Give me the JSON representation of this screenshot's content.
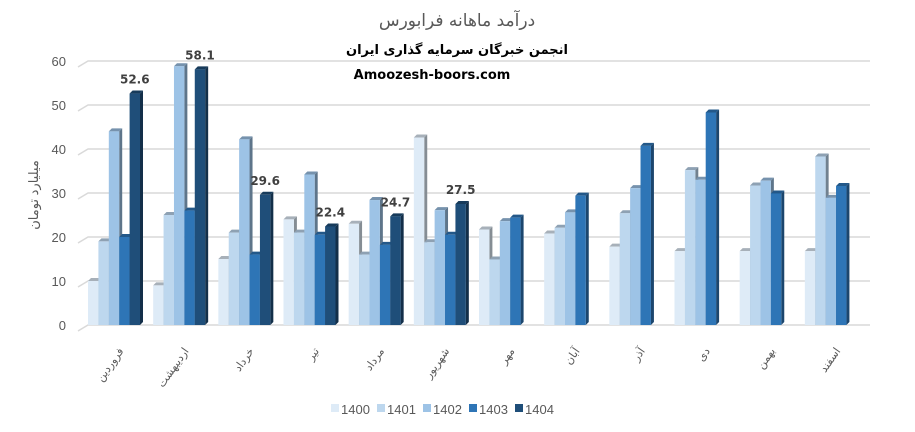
{
  "chart_data": {
    "type": "bar",
    "title": "درآمد ماهانه فرابورس",
    "subtitle": "انجمن خبرگان سرمایه گذاری ایران",
    "watermark_text": "Amoozesh-boors.com",
    "ylabel": "میلیارد تومان",
    "xlabel": "",
    "ylim": [
      0,
      60
    ],
    "yticks": [
      0,
      10,
      20,
      30,
      40,
      50,
      60
    ],
    "grid": true,
    "legend_position": "bottom",
    "style": "3d-clustered-column",
    "categories": [
      "فروردین",
      "اردیبهشت",
      "خرداد",
      "تیر",
      "مرداد",
      "شهریور",
      "مهر",
      "آبان",
      "آذر",
      "دی",
      "بهمن",
      "اسفند"
    ],
    "series": [
      {
        "name": "1400",
        "color": "#deebf7",
        "values": [
          10,
          9,
          15,
          24,
          23,
          42.6,
          21.7,
          20.8,
          17.8,
          16.8,
          16.8,
          16.8
        ]
      },
      {
        "name": "1401",
        "color": "#bdd7ee",
        "values": [
          19,
          25,
          21,
          21,
          16,
          18.8,
          14.9,
          22.1,
          25.4,
          35.2,
          31.7,
          38.3
        ]
      },
      {
        "name": "1402",
        "color": "#9dc3e6",
        "values": [
          44,
          58.8,
          42.2,
          34.2,
          28.4,
          26.1,
          23.6,
          25.6,
          31.1,
          33,
          32.8,
          28.9
        ]
      },
      {
        "name": "1403",
        "color": "#2e75b6",
        "values": [
          20,
          26,
          16,
          20.5,
          18.2,
          20.5,
          24.4,
          29.4,
          40.7,
          48.3,
          29.9,
          31.6
        ]
      },
      {
        "name": "1404",
        "color": "#1f4e79",
        "values": [
          52.6,
          58.1,
          29.6,
          22.4,
          24.7,
          27.5,
          null,
          null,
          null,
          null,
          null,
          null
        ]
      }
    ],
    "data_labels": {
      "series": "1404",
      "values": [
        "52.6",
        "58.1",
        "29.6",
        "22.4",
        "24.7",
        "27.5"
      ]
    }
  }
}
